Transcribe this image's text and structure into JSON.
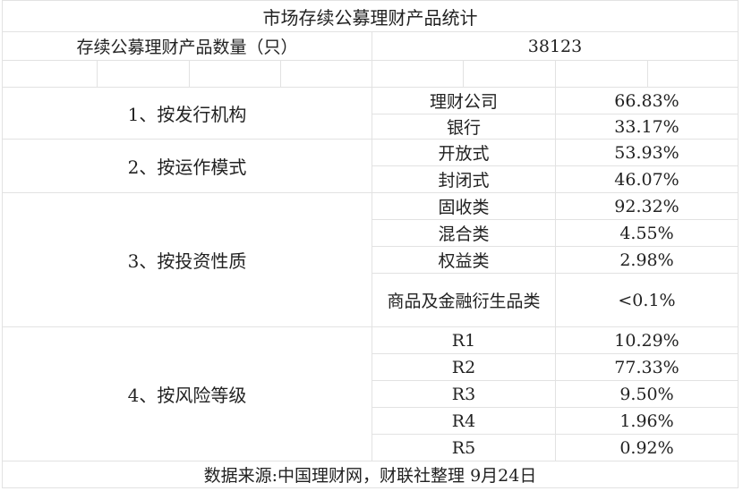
{
  "title": "市场存续公募理财产品统计",
  "count": {
    "label": "存续公募理财产品数量（只）",
    "value": "38123"
  },
  "groups": [
    {
      "label": "1、按发行机构",
      "items": [
        {
          "name": "理财公司",
          "value": "66.83%"
        },
        {
          "name": "银行",
          "value": "33.17%"
        }
      ]
    },
    {
      "label": "2、按运作模式",
      "items": [
        {
          "name": "开放式",
          "value": "53.93%"
        },
        {
          "name": "封闭式",
          "value": "46.07%"
        }
      ]
    },
    {
      "label": "3、按投资性质",
      "items": [
        {
          "name": "固收类",
          "value": "92.32%"
        },
        {
          "name": "混合类",
          "value": "4.55%"
        },
        {
          "name": "权益类",
          "value": "2.98%"
        },
        {
          "name": "商品及金融衍生品类",
          "value": "<0.1%"
        }
      ]
    },
    {
      "label": "4、按风险等级",
      "items": [
        {
          "name": "R1",
          "value": "10.29%"
        },
        {
          "name": "R2",
          "value": "77.33%"
        },
        {
          "name": "R3",
          "value": "9.50%"
        },
        {
          "name": "R4",
          "value": "1.96%"
        },
        {
          "name": "R5",
          "value": "0.92%"
        }
      ]
    }
  ],
  "footer": "数据来源:中国理财网，财联社整理 9月24日"
}
